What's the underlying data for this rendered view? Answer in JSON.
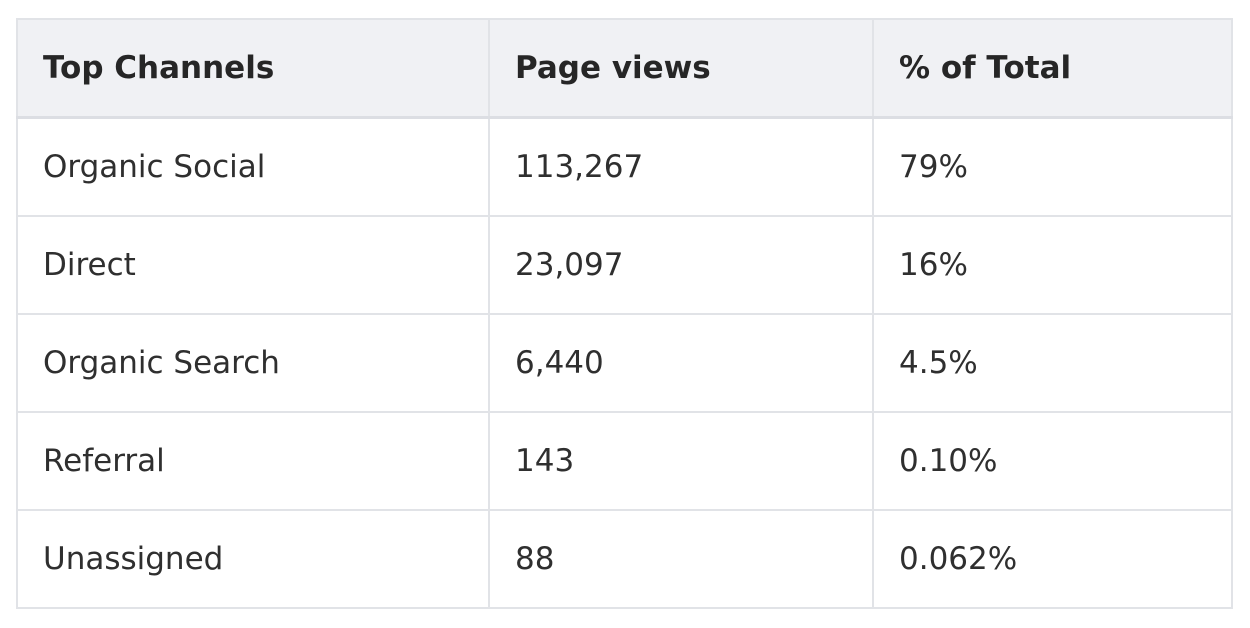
{
  "table": {
    "headers": [
      "Top Channels",
      "Page views",
      "% of Total"
    ],
    "rows": [
      [
        "Organic Social",
        "113,267",
        "79%"
      ],
      [
        "Direct",
        "23,097",
        "16%"
      ],
      [
        "Organic Search",
        "6,440",
        "4.5%"
      ],
      [
        "Referral",
        "143",
        "0.10%"
      ],
      [
        "Unassigned",
        "88",
        "0.062%"
      ]
    ]
  },
  "colors": {
    "header_bg": "#f0f1f4",
    "border": "#e1e3e7",
    "text": "#2f2f2f"
  }
}
